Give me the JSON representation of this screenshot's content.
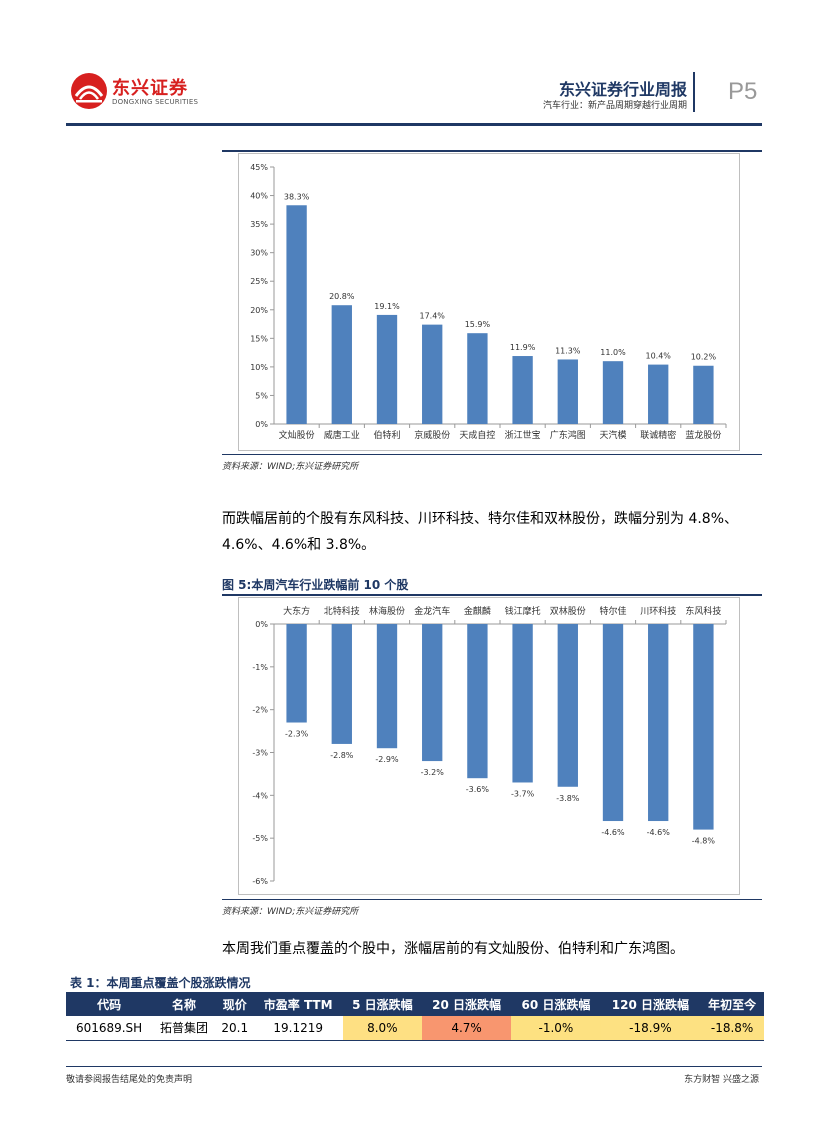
{
  "header": {
    "logo_cn": "东兴证券",
    "logo_en": "DONGXING SECURITIES",
    "title": "东兴证券行业周报",
    "subtitle": "汽车行业：新产品周期穿越行业周期",
    "page": "P5"
  },
  "chart1": {
    "source": "资料来源：WIND;东兴证券研究所"
  },
  "paragraph1": "而跌幅居前的个股有东风科技、川环科技、特尔佳和双林股份，跌幅分别为 4.8%、4.6%、4.6%和 3.8%。",
  "chart2": {
    "caption": "图 5:本周汽车行业跌幅前 10 个股",
    "source": "资料来源：WIND;东兴证券研究所"
  },
  "paragraph2": "本周我们重点覆盖的个股中，涨幅居前的有文灿股份、伯特利和广东鸿图。",
  "table": {
    "caption": "表 1：本周重点覆盖个股涨跌情况",
    "headers": [
      "代码",
      "名称",
      "现价",
      "市盈率 TTM",
      "5 日涨跌幅",
      "20 日涨跌幅",
      "60 日涨跌幅",
      "120 日涨跌幅",
      "年初至今"
    ],
    "row": [
      "601689.SH",
      "拓普集团",
      "20.1",
      "19.1219",
      "8.0%",
      "4.7%",
      "-1.0%",
      "-18.9%",
      "-18.8%"
    ],
    "cell_colors": [
      "#ffffff",
      "#ffffff",
      "#ffffff",
      "#ffffff",
      "#fee083",
      "#f8966f",
      "#fde181",
      "#fde182",
      "#fde182"
    ]
  },
  "footer": {
    "left": "敬请参阅报告结尾处的免责声明",
    "right": "东方财智 兴盛之源"
  },
  "colors": {
    "bar": "#4f81bd",
    "brand_red": "#d7201f",
    "navy": "#1f3864"
  },
  "chart_data": [
    {
      "type": "bar",
      "title": "",
      "categories": [
        "文灿股份",
        "威唐工业",
        "伯特利",
        "京威股份",
        "天成自控",
        "浙江世宝",
        "广东鸿图",
        "天汽模",
        "联诚精密",
        "蓝龙股份"
      ],
      "values": [
        38.3,
        20.8,
        19.1,
        17.4,
        15.9,
        11.9,
        11.3,
        11.0,
        10.4,
        10.2
      ],
      "value_labels": [
        "38.3%",
        "20.8%",
        "19.1%",
        "17.4%",
        "15.9%",
        "11.9%",
        "11.3%",
        "11.0%",
        "10.4%",
        "10.2%"
      ],
      "yticks": [
        "0%",
        "5%",
        "10%",
        "15%",
        "20%",
        "25%",
        "30%",
        "35%",
        "40%",
        "45%"
      ],
      "ylim": [
        0,
        45
      ],
      "grid": false
    },
    {
      "type": "bar",
      "title": "",
      "categories": [
        "大东方",
        "北特科技",
        "林海股份",
        "金龙汽车",
        "金麒麟",
        "钱江摩托",
        "双林股份",
        "特尔佳",
        "川环科技",
        "东风科技"
      ],
      "values": [
        -2.3,
        -2.8,
        -2.9,
        -3.2,
        -3.6,
        -3.7,
        -3.8,
        -4.6,
        -4.6,
        -4.8
      ],
      "value_labels": [
        "-2.3%",
        "-2.8%",
        "-2.9%",
        "-3.2%",
        "-3.6%",
        "-3.7%",
        "-3.8%",
        "-4.6%",
        "-4.6%",
        "-4.8%"
      ],
      "yticks": [
        "0%",
        "-1%",
        "-2%",
        "-3%",
        "-4%",
        "-5%",
        "-6%"
      ],
      "ylim": [
        -6,
        0
      ],
      "grid": false
    }
  ]
}
